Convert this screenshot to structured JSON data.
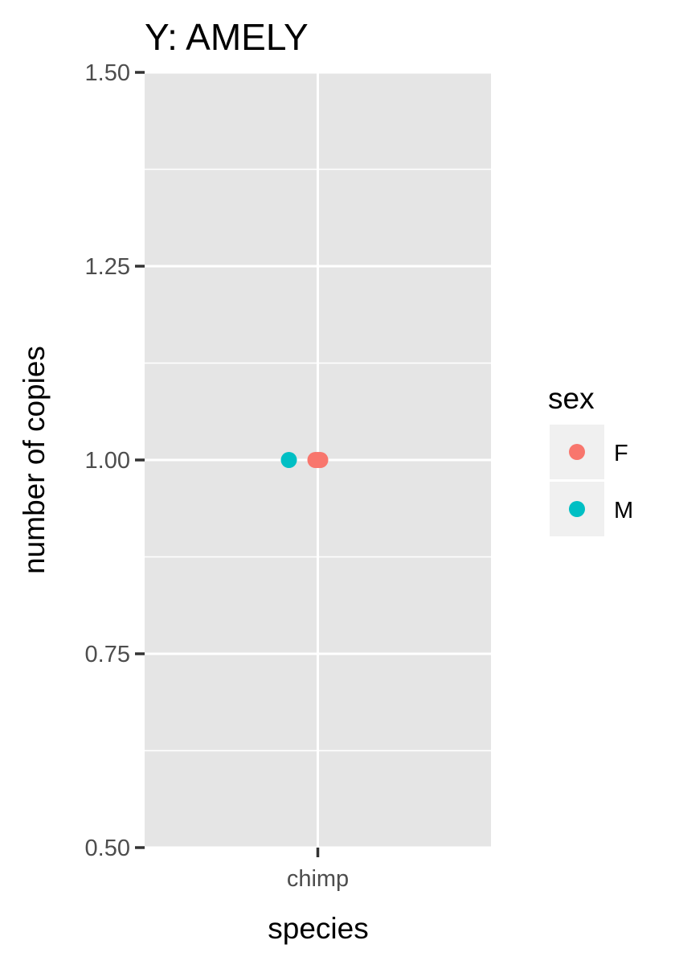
{
  "chart_data": {
    "type": "scatter",
    "title": "Y: AMELY",
    "xlabel": "species",
    "ylabel": "number of copies",
    "categories": [
      "chimp"
    ],
    "ylim": [
      0.5,
      1.5
    ],
    "yticks": [
      0.5,
      0.75,
      1.0,
      1.25,
      1.5
    ],
    "ytick_labels": [
      "0.50",
      "0.75",
      "1.00",
      "1.25",
      "1.50"
    ],
    "grid": true,
    "legend": {
      "title": "sex",
      "position": "right",
      "entries": [
        {
          "label": "F",
          "color": "#F8766D"
        },
        {
          "label": "M",
          "color": "#00BFC4"
        }
      ]
    },
    "series": [
      {
        "name": "F",
        "color": "#F8766D",
        "points": [
          {
            "x": "chimp",
            "y": 1.0
          },
          {
            "x": "chimp",
            "y": 1.0
          },
          {
            "x": "chimp",
            "y": 1.0
          }
        ]
      },
      {
        "name": "M",
        "color": "#00BFC4",
        "points": [
          {
            "x": "chimp",
            "y": 1.0
          }
        ]
      }
    ],
    "colors": {
      "panel": "#E5E5E5",
      "grid": "#FFFFFF",
      "legend_key": "#F0F0F0"
    }
  }
}
